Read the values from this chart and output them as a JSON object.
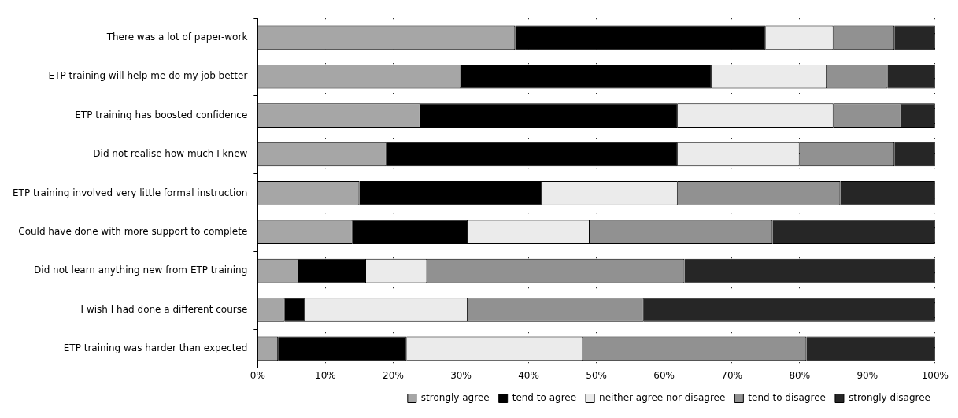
{
  "chart_data": {
    "type": "bar",
    "orientation": "horizontal",
    "stacked": true,
    "categories": [
      "There was a lot of paper-work",
      "ETP training will help me do my job better",
      "ETP training has boosted confidence",
      "Did not realise how much I knew",
      "ETP training involved very little formal instruction",
      "Could have done with more support to complete",
      "Did not learn anything new from ETP training",
      "I wish I had done a different course",
      "ETP training was harder than expected"
    ],
    "series": [
      {
        "name": "strongly agree",
        "color": "#a6a6a6",
        "values": [
          38,
          30,
          24,
          19,
          15,
          14,
          6,
          4,
          3
        ]
      },
      {
        "name": "tend to agree",
        "color": "#000000",
        "values": [
          37,
          37,
          38,
          43,
          27,
          17,
          10,
          3,
          19
        ]
      },
      {
        "name": "neither agree nor disagree",
        "color": "#ebebeb",
        "values": [
          10,
          17,
          23,
          18,
          20,
          18,
          9,
          24,
          26
        ]
      },
      {
        "name": "tend to disagree",
        "color": "#919191",
        "values": [
          9,
          9,
          10,
          14,
          24,
          27,
          38,
          26,
          33
        ]
      },
      {
        "name": "strongly disagree",
        "color": "#262626",
        "values": [
          6,
          7,
          5,
          6,
          14,
          24,
          37,
          43,
          19
        ]
      }
    ],
    "xlim": [
      0,
      100
    ],
    "xticks": [
      {
        "value": 0,
        "label": "0%"
      },
      {
        "value": 10,
        "label": "10%"
      },
      {
        "value": 20,
        "label": "20%"
      },
      {
        "value": 30,
        "label": "30%"
      },
      {
        "value": 40,
        "label": "40%"
      },
      {
        "value": 50,
        "label": "50%"
      },
      {
        "value": 60,
        "label": "60%"
      },
      {
        "value": 70,
        "label": "70%"
      },
      {
        "value": 80,
        "label": "80%"
      },
      {
        "value": 90,
        "label": "90%"
      },
      {
        "value": 100,
        "label": "100%"
      }
    ],
    "grid": "x",
    "legend": "bottom"
  }
}
